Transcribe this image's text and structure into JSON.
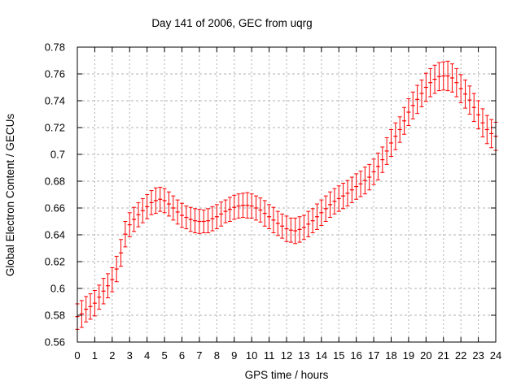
{
  "title": "Day 141 of 2006, GEC from uqrg",
  "axes": {
    "x_label": "GPS time / hours",
    "y_label": "Global Electron Content / GECUs",
    "x_tick_labels": [
      "0",
      "1",
      "2",
      "3",
      "4",
      "5",
      "6",
      "7",
      "8",
      "9",
      "10",
      "11",
      "12",
      "13",
      "14",
      "15",
      "16",
      "17",
      "18",
      "19",
      "20",
      "21",
      "22",
      "23",
      "24"
    ],
    "y_tick_labels": [
      "0.56",
      "0.58",
      "0.6",
      "0.62",
      "0.64",
      "0.66",
      "0.68",
      "0.7",
      "0.72",
      "0.74",
      "0.76",
      "0.78"
    ]
  },
  "colors": {
    "series": "#ff0000",
    "grid": "#b0b0b0",
    "axis": "#000000",
    "background": "#ffffff"
  },
  "chart_data": {
    "type": "scatter",
    "error_bars": true,
    "series_name": "GEC from uqrg",
    "title": "Day 141 of 2006, GEC from uqrg",
    "xlabel": "GPS time / hours",
    "ylabel": "Global Electron Content / GECUs",
    "xlim": [
      0,
      24
    ],
    "ylim": [
      0.56,
      0.78
    ],
    "x_tick_step": 1,
    "y_tick_step": 0.02,
    "grid": true,
    "x": [
      0,
      0.25,
      0.5,
      0.75,
      1,
      1.25,
      1.5,
      1.75,
      2,
      2.25,
      2.5,
      2.75,
      3,
      3.25,
      3.5,
      3.75,
      4,
      4.25,
      4.5,
      4.75,
      5,
      5.25,
      5.5,
      5.75,
      6,
      6.25,
      6.5,
      6.75,
      7,
      7.25,
      7.5,
      7.75,
      8,
      8.25,
      8.5,
      8.75,
      9,
      9.25,
      9.5,
      9.75,
      10,
      10.25,
      10.5,
      10.75,
      11,
      11.25,
      11.5,
      11.75,
      12,
      12.25,
      12.5,
      12.75,
      13,
      13.25,
      13.5,
      13.75,
      14,
      14.25,
      14.5,
      14.75,
      15,
      15.25,
      15.5,
      15.75,
      16,
      16.25,
      16.5,
      16.75,
      17,
      17.25,
      17.5,
      17.75,
      18,
      18.25,
      18.5,
      18.75,
      19,
      19.25,
      19.5,
      19.75,
      20,
      20.25,
      20.5,
      20.75,
      21,
      21.25,
      21.5,
      21.75,
      22,
      22.25,
      22.5,
      22.75,
      23,
      23.25,
      23.5,
      23.75,
      24
    ],
    "y": [
      0.579,
      0.581,
      0.5845,
      0.5865,
      0.589,
      0.5935,
      0.598,
      0.602,
      0.6065,
      0.6145,
      0.6265,
      0.6405,
      0.6475,
      0.6515,
      0.655,
      0.658,
      0.661,
      0.664,
      0.6655,
      0.6665,
      0.6655,
      0.663,
      0.66,
      0.657,
      0.6545,
      0.653,
      0.6515,
      0.6505,
      0.65,
      0.65,
      0.6505,
      0.652,
      0.6535,
      0.6555,
      0.6575,
      0.659,
      0.6605,
      0.6615,
      0.662,
      0.662,
      0.6615,
      0.66,
      0.6585,
      0.656,
      0.6535,
      0.651,
      0.6485,
      0.6465,
      0.6445,
      0.6435,
      0.643,
      0.644,
      0.6455,
      0.648,
      0.6505,
      0.6535,
      0.6565,
      0.6595,
      0.6625,
      0.665,
      0.667,
      0.669,
      0.671,
      0.6735,
      0.676,
      0.678,
      0.6805,
      0.683,
      0.687,
      0.691,
      0.696,
      0.7025,
      0.7085,
      0.7135,
      0.7185,
      0.725,
      0.7315,
      0.7365,
      0.741,
      0.7455,
      0.75,
      0.7535,
      0.756,
      0.758,
      0.7585,
      0.7585,
      0.757,
      0.7535,
      0.749,
      0.745,
      0.7405,
      0.735,
      0.7295,
      0.7235,
      0.7185,
      0.7155,
      0.7135
    ],
    "yerr": [
      0.0095,
      0.01,
      0.0095,
      0.0095,
      0.0095,
      0.009,
      0.0095,
      0.009,
      0.009,
      0.0095,
      0.01,
      0.0095,
      0.009,
      0.009,
      0.009,
      0.009,
      0.009,
      0.009,
      0.0095,
      0.009,
      0.009,
      0.009,
      0.009,
      0.009,
      0.009,
      0.0085,
      0.009,
      0.009,
      0.009,
      0.0085,
      0.009,
      0.009,
      0.009,
      0.009,
      0.0085,
      0.009,
      0.009,
      0.009,
      0.009,
      0.0095,
      0.009,
      0.009,
      0.009,
      0.0095,
      0.009,
      0.0095,
      0.009,
      0.009,
      0.0095,
      0.009,
      0.0095,
      0.0095,
      0.009,
      0.0095,
      0.009,
      0.0095,
      0.0095,
      0.0095,
      0.0095,
      0.0095,
      0.0095,
      0.0095,
      0.0095,
      0.0095,
      0.0095,
      0.0095,
      0.01,
      0.0095,
      0.0095,
      0.01,
      0.0095,
      0.01,
      0.01,
      0.01,
      0.0095,
      0.01,
      0.01,
      0.01,
      0.0105,
      0.01,
      0.0105,
      0.0105,
      0.0105,
      0.0105,
      0.0105,
      0.011,
      0.0105,
      0.0105,
      0.0105,
      0.0105,
      0.0105,
      0.0105,
      0.0105,
      0.0105,
      0.0105,
      0.0105,
      0.0105
    ]
  }
}
